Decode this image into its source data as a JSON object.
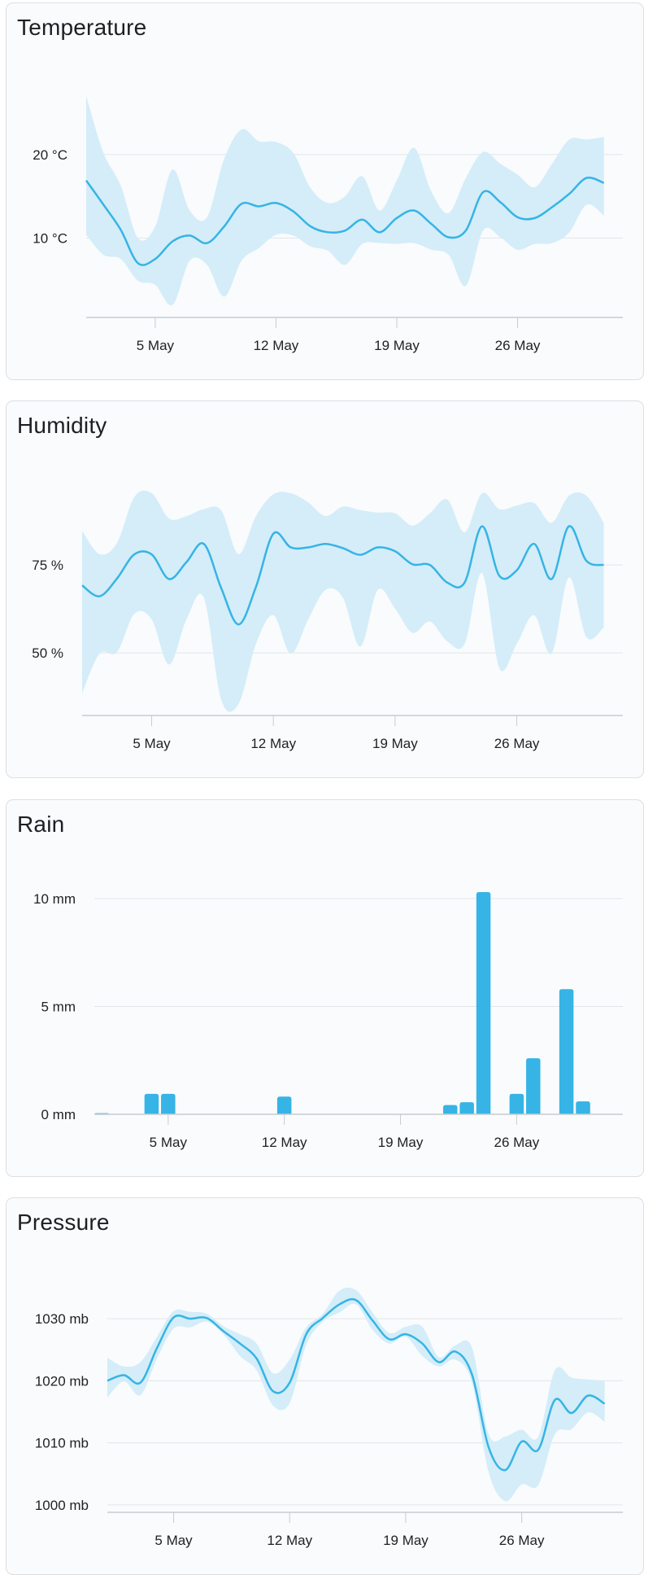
{
  "colors": {
    "line": "#36b4e5",
    "band": "#d4edf8",
    "bar": "#36b4e5",
    "grid": "#e3e6ea",
    "axis": "#c8ccd1"
  },
  "chart_data": [
    {
      "type": "area",
      "title": "Temperature",
      "x_ticks": [
        "5 May",
        "12 May",
        "19 May",
        "26 May"
      ],
      "y_ticks": [
        {
          "value": 10,
          "label": "10 °C"
        },
        {
          "value": 20,
          "label": "20 °C"
        }
      ],
      "ylim": [
        0.5,
        27.1
      ],
      "xlim": [
        "1 May",
        "1 Jun"
      ],
      "grid": true,
      "x": [
        "1 May",
        "2 May",
        "3 May",
        "4 May",
        "5 May",
        "6 May",
        "7 May",
        "8 May",
        "9 May",
        "10 May",
        "11 May",
        "12 May",
        "13 May",
        "14 May",
        "15 May",
        "16 May",
        "17 May",
        "18 May",
        "19 May",
        "20 May",
        "21 May",
        "22 May",
        "23 May",
        "24 May",
        "25 May",
        "26 May",
        "27 May",
        "28 May",
        "29 May",
        "30 May",
        "31 May"
      ],
      "mean": [
        16.9,
        14,
        11,
        7,
        7.5,
        9.6,
        10.3,
        9.4,
        11.4,
        14.1,
        13.8,
        14.2,
        13.2,
        11.4,
        10.7,
        10.9,
        12.2,
        10.7,
        12.4,
        13.3,
        11.7,
        10.1,
        10.9,
        15.5,
        14.3,
        12.5,
        12.4,
        13.7,
        15.3,
        17.2,
        16.6
      ],
      "max": [
        27,
        20.2,
        16.3,
        10,
        11.4,
        18.2,
        13.3,
        12.5,
        19.5,
        23,
        21.6,
        21.5,
        20.2,
        16,
        14.2,
        15,
        17.4,
        13.3,
        16.9,
        20.8,
        15.6,
        13,
        17.2,
        20.3,
        18.9,
        17.6,
        16.1,
        18.9,
        21.8,
        21.8,
        22.1
      ],
      "min": [
        10.4,
        8,
        7.5,
        4.9,
        4.4,
        2,
        7.3,
        6.8,
        3,
        7.3,
        8.8,
        10.4,
        10.3,
        9,
        8.5,
        6.8,
        9.3,
        9.4,
        9.3,
        9.4,
        8.6,
        8,
        4.3,
        10.9,
        10.1,
        8.6,
        9.3,
        9.4,
        10.7,
        14,
        12.7
      ]
    },
    {
      "type": "area",
      "title": "Humidity",
      "x_ticks": [
        "5 May",
        "12 May",
        "19 May",
        "26 May"
      ],
      "y_ticks": [
        {
          "value": 50,
          "label": "50 %"
        },
        {
          "value": 75,
          "label": "75 %"
        }
      ],
      "ylim": [
        32.2,
        95.4
      ],
      "xlim": [
        "1 May",
        "1 Jun"
      ],
      "grid": true,
      "x": [
        "1 May",
        "2 May",
        "3 May",
        "4 May",
        "5 May",
        "6 May",
        "7 May",
        "8 May",
        "9 May",
        "10 May",
        "11 May",
        "12 May",
        "13 May",
        "14 May",
        "15 May",
        "16 May",
        "17 May",
        "18 May",
        "19 May",
        "20 May",
        "21 May",
        "22 May",
        "23 May",
        "24 May",
        "25 May",
        "26 May",
        "27 May",
        "28 May",
        "29 May",
        "30 May",
        "31 May"
      ],
      "mean": [
        69.2,
        66.1,
        71.1,
        78,
        78,
        71,
        75.8,
        81,
        68.4,
        58.1,
        68.8,
        83.9,
        80,
        80,
        81,
        79.8,
        77.9,
        80,
        78.9,
        75.2,
        75,
        70,
        70,
        86,
        71.9,
        73.5,
        81,
        71,
        86,
        76.2,
        75
      ],
      "max": [
        84.7,
        78.1,
        81.2,
        94.3,
        95.4,
        88.2,
        88.9,
        90.9,
        90.5,
        78.1,
        88.9,
        95.1,
        95.4,
        92.8,
        88.9,
        91.6,
        90.6,
        89.9,
        89.7,
        86.2,
        89.7,
        93.6,
        84.3,
        95.4,
        90.9,
        91.9,
        92.6,
        87,
        94.7,
        94.7,
        87
      ],
      "min": [
        38.6,
        49.8,
        50.2,
        61.1,
        59.5,
        46.7,
        59.5,
        65.7,
        36.7,
        35.5,
        52.6,
        60.7,
        49.8,
        59.5,
        67.9,
        65.7,
        51.8,
        67.9,
        62.6,
        55.7,
        58.9,
        53.3,
        52.6,
        72.7,
        45.6,
        52.6,
        60.7,
        49.8,
        71.5,
        54.5,
        57.2
      ]
    },
    {
      "type": "bar",
      "title": "Rain",
      "x_ticks": [
        "5 May",
        "12 May",
        "19 May",
        "26 May"
      ],
      "y_ticks": [
        {
          "value": 0,
          "label": "0 mm"
        },
        {
          "value": 5,
          "label": "5 mm"
        },
        {
          "value": 10,
          "label": "10 mm"
        }
      ],
      "ylim": [
        0,
        10.3
      ],
      "xlim": [
        "1 May",
        "1 Jun"
      ],
      "grid": true,
      "x": [
        "1 May",
        "2 May",
        "3 May",
        "4 May",
        "5 May",
        "6 May",
        "7 May",
        "8 May",
        "9 May",
        "10 May",
        "11 May",
        "12 May",
        "13 May",
        "14 May",
        "15 May",
        "16 May",
        "17 May",
        "18 May",
        "19 May",
        "20 May",
        "21 May",
        "22 May",
        "23 May",
        "24 May",
        "25 May",
        "26 May",
        "27 May",
        "28 May",
        "29 May",
        "30 May",
        "31 May"
      ],
      "values": [
        0.05,
        0,
        0,
        0.95,
        0.95,
        0,
        0,
        0,
        0,
        0,
        0,
        0.82,
        0,
        0,
        0,
        0,
        0,
        0,
        0,
        0,
        0,
        0.43,
        0.56,
        10.3,
        0,
        0.95,
        2.6,
        0,
        5.8,
        0.6,
        0
      ]
    },
    {
      "type": "area",
      "title": "Pressure",
      "x_ticks": [
        "5 May",
        "12 May",
        "19 May",
        "26 May"
      ],
      "y_ticks": [
        {
          "value": 1000,
          "label": "1000 mb"
        },
        {
          "value": 1010,
          "label": "1010 mb"
        },
        {
          "value": 1020,
          "label": "1020 mb"
        },
        {
          "value": 1030,
          "label": "1030 mb"
        }
      ],
      "ylim": [
        998.8,
        1034.6
      ],
      "xlim": [
        "1 May",
        "1 Jun"
      ],
      "grid": true,
      "x": [
        "1 May",
        "2 May",
        "3 May",
        "4 May",
        "5 May",
        "6 May",
        "7 May",
        "8 May",
        "9 May",
        "10 May",
        "11 May",
        "12 May",
        "13 May",
        "14 May",
        "15 May",
        "16 May",
        "17 May",
        "18 May",
        "19 May",
        "20 May",
        "21 May",
        "22 May",
        "23 May",
        "24 May",
        "25 May",
        "26 May",
        "27 May",
        "28 May",
        "29 May",
        "30 May",
        "31 May"
      ],
      "mean": [
        1020,
        1020.9,
        1019.7,
        1025.3,
        1030.2,
        1030,
        1030.1,
        1028,
        1026,
        1023.6,
        1018.3,
        1019.7,
        1027.5,
        1030.1,
        1032.3,
        1033,
        1029.7,
        1026.7,
        1027.5,
        1026,
        1023,
        1024.7,
        1021,
        1009.3,
        1005.6,
        1010.2,
        1008.9,
        1016.9,
        1014.8,
        1017.6,
        1016.3
      ],
      "max": [
        1023.7,
        1022.3,
        1023,
        1027.1,
        1031.2,
        1031.1,
        1030.8,
        1028.8,
        1027.5,
        1026,
        1021.2,
        1023.4,
        1028.6,
        1030.8,
        1034.5,
        1034.6,
        1031,
        1027.7,
        1028.7,
        1028.7,
        1023.8,
        1025.7,
        1025.3,
        1011.4,
        1011,
        1012.1,
        1011,
        1021.7,
        1020.5,
        1020.2,
        1020
      ],
      "min": [
        1017.3,
        1019.9,
        1017.7,
        1023.6,
        1028.4,
        1028.6,
        1029.5,
        1027.5,
        1024,
        1021.7,
        1016,
        1016.4,
        1025.8,
        1029.5,
        1031,
        1032.3,
        1028.2,
        1026,
        1027.1,
        1024,
        1022.3,
        1023.4,
        1019.7,
        1005.3,
        1000.6,
        1003.3,
        1003.2,
        1011.4,
        1012.2,
        1014.9,
        1013.4
      ]
    }
  ]
}
